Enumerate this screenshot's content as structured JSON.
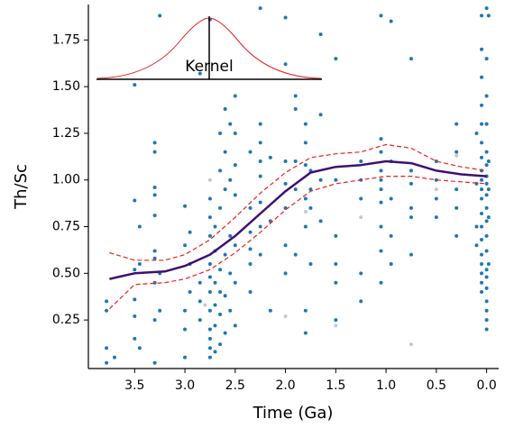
{
  "chart_data": {
    "type": "scatter",
    "xlabel": "Time (Ga)",
    "ylabel": "Th/Sc",
    "inset_label": "Kernel",
    "xlim": [
      3.96,
      -0.12
    ],
    "ylim": [
      -0.01,
      1.94
    ],
    "xticks": [
      3.5,
      {
        "value": 3,
        "label": "3.0"
      },
      2.5,
      {
        "value": 2,
        "label": "2.0"
      },
      1.5,
      {
        "value": 1,
        "label": "1.0"
      },
      0.5,
      {
        "value": 0,
        "label": "0.0"
      }
    ],
    "yticks": [
      0.25,
      {
        "value": 0.5,
        "label": "0.50"
      },
      0.75,
      {
        "value": 1,
        "label": "1.00"
      },
      1.25,
      {
        "value": 1.5,
        "label": "1.50"
      },
      1.75
    ],
    "series": [
      {
        "mode": "markers",
        "color": "#c8c8c8",
        "x": [
          2.0,
          1.5,
          0.75,
          1.25,
          2.75,
          1.8,
          0.5,
          2.8,
          0.3
        ],
        "values": [
          0.27,
          0.22,
          0.12,
          0.8,
          1.0,
          0.83,
          0.95,
          0.33,
          1.13
        ]
      },
      {
        "mode": "markers",
        "color": "#1f77b4",
        "x": [
          3.78,
          3.78,
          3.78,
          3.78,
          3.7,
          3.5,
          3.5,
          3.5,
          3.5,
          3.5,
          3.5,
          3.45,
          3.45,
          3.45,
          3.3,
          3.3,
          3.3,
          3.3,
          3.3,
          3.3,
          3.3,
          3.3,
          3.3,
          3.3,
          3.25,
          3.25,
          3.25,
          3.0,
          3.0,
          3.0,
          3.0,
          3.0,
          2.95,
          2.95,
          2.95,
          2.85,
          2.85,
          2.85,
          2.85,
          2.75,
          2.75,
          2.75,
          2.75,
          2.75,
          2.75,
          2.75,
          2.75,
          2.75,
          2.75,
          2.75,
          2.75,
          2.7,
          2.7,
          2.7,
          2.7,
          2.7,
          2.7,
          2.65,
          2.65,
          2.65,
          2.65,
          2.65,
          2.65,
          2.65,
          2.6,
          2.6,
          2.6,
          2.6,
          2.6,
          2.6,
          2.55,
          2.55,
          2.55,
          2.55,
          2.55,
          2.5,
          2.5,
          2.5,
          2.5,
          2.5,
          2.5,
          2.5,
          2.35,
          2.35,
          2.35,
          2.35,
          2.35,
          2.35,
          2.25,
          2.25,
          2.25,
          2.25,
          2.25,
          2.25,
          2.25,
          2.25,
          2.15,
          2.15,
          2.15,
          2.0,
          2.0,
          2.0,
          2.0,
          2.0,
          2.0,
          2.0,
          1.9,
          1.9,
          1.9,
          1.9,
          1.9,
          1.8,
          1.8,
          1.8,
          1.8,
          1.8,
          1.8,
          1.8,
          1.75,
          1.75,
          1.75,
          1.75,
          1.65,
          1.65,
          1.65,
          1.65,
          1.5,
          1.5,
          1.5,
          1.5,
          1.5,
          1.5,
          1.25,
          1.25,
          1.25,
          1.25,
          1.25,
          1.05,
          1.05,
          1.05,
          1.05,
          1.05,
          1.05,
          1.05,
          1.05,
          1.05,
          1.05,
          0.95,
          0.95,
          0.95,
          0.95,
          0.95,
          0.75,
          0.75,
          0.75,
          0.75,
          0.75,
          0.75,
          0.5,
          0.5,
          0.5,
          0.5,
          0.3,
          0.3,
          0.3,
          0.3,
          0.3,
          0.1,
          0.1,
          0.1,
          0.1,
          0.05,
          0.05,
          0.05,
          0.05,
          0.05,
          0.05,
          0.05,
          0.05,
          0.05,
          0.05,
          0.05,
          0.05,
          0.05,
          0.05,
          0.05,
          0.05,
          0.05,
          0.05,
          0.05,
          0.0,
          0.0,
          0.0,
          0.0,
          0.0,
          0.0,
          0.0,
          0.0,
          0.0,
          0.0,
          0.0,
          0.0,
          0.0,
          0.0,
          0.0,
          0.0,
          0.0,
          0.0,
          0.0,
          0.0,
          -0.02,
          -0.02,
          -0.02,
          -0.02,
          -0.02
        ],
        "values": [
          0.02,
          0.1,
          0.3,
          0.35,
          0.05,
          1.51,
          0.89,
          0.52,
          0.36,
          0.27,
          0.15,
          0.55,
          0.75,
          0.1,
          1.2,
          1.15,
          0.96,
          0.92,
          0.81,
          0.62,
          0.58,
          0.45,
          0.25,
          0.02,
          1.88,
          0.5,
          0.3,
          0.86,
          0.65,
          0.3,
          0.2,
          0.05,
          0.72,
          0.55,
          0.4,
          1.57,
          0.45,
          0.35,
          0.25,
          1.86,
          0.9,
          0.8,
          0.7,
          0.55,
          0.48,
          0.4,
          0.3,
          0.2,
          0.15,
          0.1,
          0.05,
          0.75,
          0.62,
          0.45,
          0.33,
          0.22,
          0.08,
          1.25,
          1.05,
          0.85,
          0.52,
          0.4,
          0.28,
          0.12,
          1.38,
          1.15,
          0.95,
          0.6,
          0.38,
          0.18,
          1.3,
          1.0,
          0.7,
          0.5,
          0.3,
          1.45,
          1.25,
          1.08,
          0.92,
          0.65,
          0.45,
          0.22,
          1.15,
          0.85,
          0.72,
          0.63,
          0.55,
          0.4,
          1.92,
          1.3,
          1.2,
          1.1,
          1.02,
          0.88,
          0.75,
          0.6,
          1.12,
          0.78,
          0.3,
          1.87,
          1.62,
          1.1,
          0.98,
          0.85,
          0.65,
          0.5,
          1.45,
          1.38,
          1.1,
          0.95,
          0.6,
          1.3,
          1.2,
          1.08,
          0.9,
          0.75,
          0.3,
          0.18,
          1.05,
          0.95,
          0.85,
          0.55,
          1.78,
          1.35,
          1.0,
          0.78,
          1.65,
          1.0,
          0.7,
          0.55,
          0.45,
          0.25,
          1.1,
          1.0,
          0.9,
          0.5,
          0.35,
          1.88,
          1.22,
          1.15,
          1.05,
          1.0,
          0.95,
          0.88,
          0.75,
          0.62,
          0.45,
          1.85,
          1.1,
          0.9,
          0.7,
          0.55,
          1.65,
          1.05,
          0.98,
          0.85,
          0.8,
          0.6,
          1.1,
          1.0,
          0.9,
          0.8,
          1.3,
          1.15,
          0.95,
          0.85,
          0.7,
          1.25,
          0.98,
          0.75,
          0.65,
          1.88,
          1.7,
          1.55,
          1.4,
          1.3,
          1.2,
          1.12,
          1.05,
          1.0,
          0.95,
          0.9,
          0.82,
          0.75,
          0.68,
          0.6,
          0.55,
          0.5,
          0.45,
          0.4,
          1.92,
          1.65,
          1.45,
          1.3,
          1.15,
          1.08,
          1.02,
          0.98,
          0.92,
          0.85,
          0.78,
          0.7,
          0.62,
          0.52,
          0.48,
          0.42,
          0.35,
          0.3,
          0.25,
          0.2,
          1.88,
          1.1,
          0.95,
          0.8,
          0.55
        ]
      },
      {
        "mode": "dashed",
        "color": "#e8201c",
        "x": [
          3.75,
          3.5,
          3.2,
          3.0,
          2.75,
          2.5,
          2.25,
          2.0,
          1.75,
          1.5,
          1.25,
          1.0,
          0.75,
          0.5,
          0.25,
          0.0
        ],
        "values": [
          0.61,
          0.57,
          0.57,
          0.6,
          0.68,
          0.8,
          0.93,
          1.04,
          1.12,
          1.14,
          1.15,
          1.19,
          1.17,
          1.1,
          1.07,
          1.05
        ]
      },
      {
        "mode": "dashed",
        "color": "#e8201c",
        "x": [
          3.75,
          3.5,
          3.2,
          3.0,
          2.75,
          2.5,
          2.25,
          2.0,
          1.75,
          1.5,
          1.25,
          1.0,
          0.75,
          0.5,
          0.25,
          0.0
        ],
        "values": [
          0.31,
          0.44,
          0.45,
          0.47,
          0.52,
          0.61,
          0.72,
          0.84,
          0.94,
          0.98,
          1.0,
          1.02,
          1.02,
          1.0,
          0.99,
          0.98
        ]
      },
      {
        "mode": "line",
        "color": "#3f0f72",
        "x": [
          3.75,
          3.5,
          3.2,
          3.0,
          2.75,
          2.5,
          2.25,
          2.0,
          1.75,
          1.5,
          1.25,
          1.0,
          0.75,
          0.5,
          0.25,
          0.0
        ],
        "values": [
          0.47,
          0.5,
          0.51,
          0.54,
          0.6,
          0.7,
          0.82,
          0.94,
          1.04,
          1.07,
          1.08,
          1.1,
          1.09,
          1.05,
          1.03,
          1.02
        ]
      }
    ]
  }
}
